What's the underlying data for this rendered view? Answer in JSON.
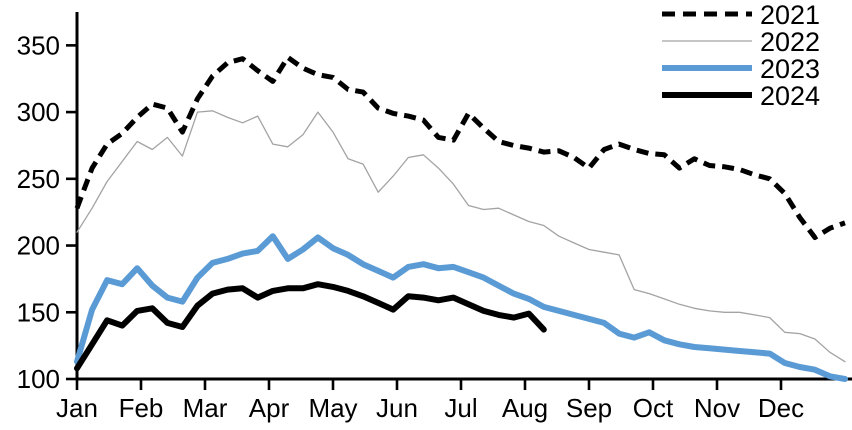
{
  "chart_data": {
    "type": "line",
    "title": "",
    "x_axis": {
      "tick_labels": [
        "Jan",
        "Feb",
        "Mar",
        "Apr",
        "May",
        "Jun",
        "Jul",
        "Aug",
        "Sep",
        "Oct",
        "Nov",
        "Dec"
      ],
      "unit": "weekly"
    },
    "y_axis": {
      "ticks": [
        100,
        150,
        200,
        250,
        300,
        350
      ],
      "range": [
        100,
        375
      ]
    },
    "legend": {
      "position": "top-right",
      "entries": [
        "2021",
        "2022",
        "2023",
        "2024"
      ]
    },
    "series": [
      {
        "name": "2021",
        "color": "#000000",
        "style": "dashed",
        "width": 5,
        "values": [
          228,
          258,
          276,
          284,
          296,
          306,
          303,
          285,
          310,
          327,
          337,
          340,
          331,
          323,
          341,
          333,
          328,
          326,
          317,
          315,
          303,
          299,
          297,
          294,
          281,
          279,
          299,
          288,
          278,
          275,
          273,
          270,
          271,
          266,
          258,
          272,
          276,
          272,
          269,
          268,
          258,
          265,
          260,
          259,
          257,
          253,
          250,
          239,
          221,
          206,
          213,
          217
        ]
      },
      {
        "name": "2022",
        "color": "#a3a3a3",
        "style": "solid",
        "width": 1.3,
        "values": [
          210,
          228,
          248,
          263,
          278,
          272,
          281,
          267,
          300,
          301,
          296,
          292,
          297,
          276,
          274,
          283,
          300,
          285,
          265,
          261,
          240,
          252,
          266,
          268,
          258,
          246,
          230,
          227,
          228,
          223,
          218,
          215,
          207,
          202,
          197,
          195,
          193,
          167,
          164,
          160,
          156,
          153,
          151,
          150,
          150,
          148,
          146,
          135,
          134,
          130,
          120,
          113
        ]
      },
      {
        "name": "2023",
        "color": "#5b9bd5",
        "style": "solid",
        "width": 6,
        "values": [
          113,
          152,
          174,
          171,
          183,
          170,
          161,
          158,
          176,
          187,
          190,
          194,
          196,
          207,
          190,
          197,
          206,
          198,
          193,
          186,
          181,
          176,
          184,
          186,
          183,
          184,
          180,
          176,
          170,
          164,
          160,
          154,
          151,
          148,
          145,
          142,
          134,
          131,
          135,
          129,
          126,
          124,
          123,
          122,
          121,
          120,
          119,
          112,
          109,
          107,
          102,
          100
        ]
      },
      {
        "name": "2024",
        "color": "#000000",
        "style": "solid",
        "width": 6,
        "values": [
          108,
          126,
          144,
          140,
          151,
          153,
          142,
          139,
          155,
          164,
          167,
          168,
          161,
          166,
          168,
          168,
          171,
          169,
          166,
          162,
          157,
          152,
          162,
          161,
          159,
          161,
          156,
          151,
          148,
          146,
          149,
          137
        ]
      }
    ]
  },
  "colors": {
    "background": "#ffffff",
    "axis": "#000000",
    "accent_blue": "#5b9bd5",
    "gray_line": "#a3a3a3"
  }
}
